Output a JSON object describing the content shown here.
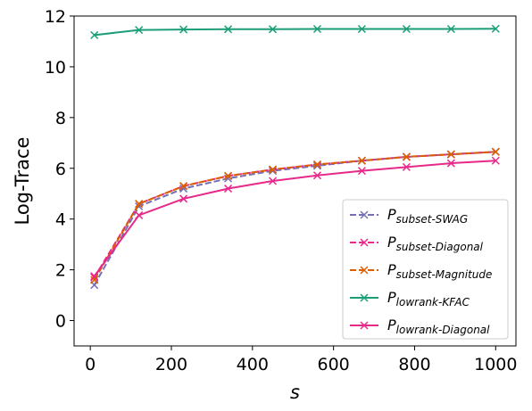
{
  "chart_data": {
    "type": "line",
    "xlabel": "s",
    "ylabel": "Log-Trace",
    "xlim": [
      -40,
      1050
    ],
    "ylim": [
      -1.0,
      12.0
    ],
    "xticks": [
      0,
      200,
      400,
      600,
      800,
      1000
    ],
    "yticks": [
      0,
      2,
      4,
      6,
      8,
      10,
      12
    ],
    "grid": false,
    "legend_position": "lower-right",
    "x": [
      10,
      120,
      230,
      340,
      450,
      560,
      670,
      780,
      890,
      1000
    ],
    "series": [
      {
        "name_base": "P",
        "name_sub": "subset-SWAG",
        "color": "#7570b3",
        "linestyle": "dashed",
        "marker": "x",
        "values": [
          1.4,
          4.5,
          5.2,
          5.6,
          5.9,
          6.1,
          6.3,
          6.45,
          6.55,
          6.65
        ]
      },
      {
        "name_base": "P",
        "name_sub": "subset-Diagonal",
        "color": "#e7298a",
        "linestyle": "dashed",
        "marker": "x",
        "values": [
          1.7,
          4.6,
          5.3,
          5.7,
          5.95,
          6.15,
          6.3,
          6.45,
          6.55,
          6.65
        ]
      },
      {
        "name_base": "P",
        "name_sub": "subset-Magnitude",
        "color": "#d95f02",
        "linestyle": "dashed",
        "marker": "x",
        "values": [
          1.6,
          4.6,
          5.3,
          5.7,
          5.95,
          6.15,
          6.3,
          6.45,
          6.55,
          6.65
        ]
      },
      {
        "name_base": "P",
        "name_sub": "lowrank-KFAC",
        "color": "#1b9e77",
        "linestyle": "solid",
        "marker": "x",
        "values": [
          11.25,
          11.45,
          11.47,
          11.48,
          11.48,
          11.49,
          11.49,
          11.49,
          11.49,
          11.5
        ]
      },
      {
        "name_base": "P",
        "name_sub": "lowrank-Diagonal",
        "color": "#e7298a",
        "linestyle": "solid",
        "marker": "x",
        "values": [
          1.75,
          4.15,
          4.8,
          5.2,
          5.5,
          5.72,
          5.9,
          6.05,
          6.2,
          6.3
        ]
      }
    ]
  }
}
